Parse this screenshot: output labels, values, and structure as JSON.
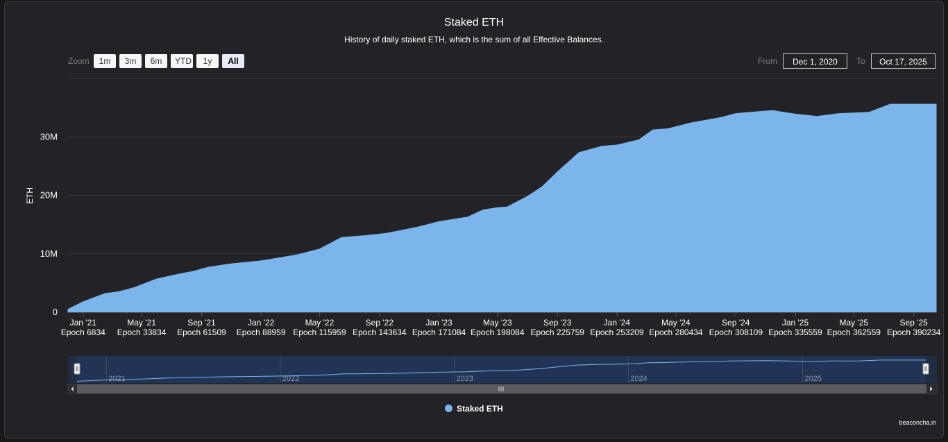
{
  "chart_data": {
    "type": "area",
    "title": "Staked ETH",
    "subtitle": "History of daily staked ETH, which is the sum of all Effective Balances.",
    "ylabel": "ETH",
    "ylim": [
      0,
      40000000
    ],
    "y_ticks": [
      {
        "value": 0,
        "label": "0"
      },
      {
        "value": 10000000,
        "label": "10M"
      },
      {
        "value": 20000000,
        "label": "20M"
      },
      {
        "value": 30000000,
        "label": "30M"
      }
    ],
    "x_ticks": [
      {
        "date": "2021-01-01",
        "label": "Jan '21",
        "epoch": "Epoch 6834"
      },
      {
        "date": "2021-05-01",
        "label": "May '21",
        "epoch": "Epoch 33834"
      },
      {
        "date": "2021-09-01",
        "label": "Sep '21",
        "epoch": "Epoch 61509"
      },
      {
        "date": "2022-01-01",
        "label": "Jan '22",
        "epoch": "Epoch 88959"
      },
      {
        "date": "2022-05-01",
        "label": "May '22",
        "epoch": "Epoch 115959"
      },
      {
        "date": "2022-09-01",
        "label": "Sep '22",
        "epoch": "Epoch 143634"
      },
      {
        "date": "2023-01-01",
        "label": "Jan '23",
        "epoch": "Epoch 171084"
      },
      {
        "date": "2023-05-01",
        "label": "May '23",
        "epoch": "Epoch 198084"
      },
      {
        "date": "2023-09-01",
        "label": "Sep '23",
        "epoch": "Epoch 225759"
      },
      {
        "date": "2024-01-01",
        "label": "Jan '24",
        "epoch": "Epoch 253209"
      },
      {
        "date": "2024-05-01",
        "label": "May '24",
        "epoch": "Epoch 280434"
      },
      {
        "date": "2024-09-01",
        "label": "Sep '24",
        "epoch": "Epoch 308109"
      },
      {
        "date": "2025-01-01",
        "label": "Jan '25",
        "epoch": "Epoch 335559"
      },
      {
        "date": "2025-05-01",
        "label": "May '25",
        "epoch": "Epoch 362559"
      },
      {
        "date": "2025-09-01",
        "label": "Sep '25",
        "epoch": "Epoch 390234"
      }
    ],
    "series": [
      {
        "name": "Staked ETH",
        "color": "#7cb5ec",
        "points": [
          [
            "2020-12-01",
            500000
          ],
          [
            "2021-01-01",
            1800000
          ],
          [
            "2021-02-15",
            3200000
          ],
          [
            "2021-03-15",
            3500000
          ],
          [
            "2021-04-15",
            4200000
          ],
          [
            "2021-06-01",
            5700000
          ],
          [
            "2021-07-15",
            6500000
          ],
          [
            "2021-08-15",
            7000000
          ],
          [
            "2021-09-15",
            7700000
          ],
          [
            "2021-11-01",
            8300000
          ],
          [
            "2022-01-01",
            8800000
          ],
          [
            "2022-03-15",
            9800000
          ],
          [
            "2022-05-01",
            10800000
          ],
          [
            "2022-06-15",
            12800000
          ],
          [
            "2022-08-01",
            13100000
          ],
          [
            "2022-09-15",
            13500000
          ],
          [
            "2022-11-15",
            14500000
          ],
          [
            "2023-01-01",
            15500000
          ],
          [
            "2023-03-01",
            16300000
          ],
          [
            "2023-04-01",
            17500000
          ],
          [
            "2023-05-01",
            17900000
          ],
          [
            "2023-05-20",
            18000000
          ],
          [
            "2023-07-01",
            19800000
          ],
          [
            "2023-08-01",
            21500000
          ],
          [
            "2023-09-01",
            24000000
          ],
          [
            "2023-10-15",
            27300000
          ],
          [
            "2023-12-01",
            28400000
          ],
          [
            "2024-01-01",
            28600000
          ],
          [
            "2024-02-15",
            29500000
          ],
          [
            "2024-03-15",
            31200000
          ],
          [
            "2024-04-15",
            31400000
          ],
          [
            "2024-06-01",
            32400000
          ],
          [
            "2024-08-01",
            33300000
          ],
          [
            "2024-09-01",
            34000000
          ],
          [
            "2024-10-15",
            34300000
          ],
          [
            "2024-11-15",
            34500000
          ],
          [
            "2025-01-01",
            33900000
          ],
          [
            "2025-02-15",
            33500000
          ],
          [
            "2025-04-01",
            34000000
          ],
          [
            "2025-06-01",
            34200000
          ],
          [
            "2025-07-15",
            35600000
          ],
          [
            "2025-08-15",
            35600000
          ],
          [
            "2025-10-17",
            35600000
          ]
        ]
      }
    ],
    "grid": true,
    "legend": "bottom-center",
    "navigator_labels": [
      "2021",
      "2022",
      "2023",
      "2024",
      "2025"
    ]
  },
  "controls": {
    "zoom_label": "Zoom",
    "zoom_buttons": [
      "1m",
      "3m",
      "6m",
      "YTD",
      "1y",
      "All"
    ],
    "zoom_selected": "All",
    "from_label": "From",
    "from_value": "Dec 1, 2020",
    "to_label": "To",
    "to_value": "Oct 17, 2025"
  },
  "legend_label": "Staked ETH",
  "credits": "beaconcha.in",
  "colors": {
    "background": "#232226",
    "series": "#7cb5ec",
    "navigator_mask": "#1d3352"
  }
}
